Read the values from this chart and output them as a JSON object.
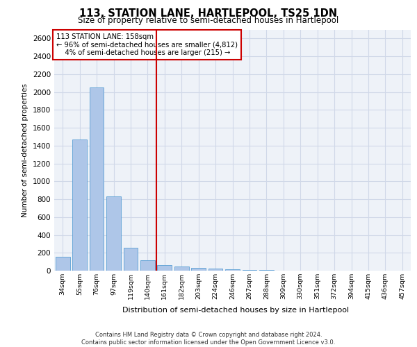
{
  "title": "113, STATION LANE, HARTLEPOOL, TS25 1DN",
  "subtitle": "Size of property relative to semi-detached houses in Hartlepool",
  "xlabel": "Distribution of semi-detached houses by size in Hartlepool",
  "ylabel": "Number of semi-detached properties",
  "property_label": "113 STATION LANE: 158sqm",
  "pct_smaller": "96% of semi-detached houses are smaller (4,812)",
  "pct_larger": "4% of semi-detached houses are larger (215)",
  "categories": [
    "34sqm",
    "55sqm",
    "76sqm",
    "97sqm",
    "119sqm",
    "140sqm",
    "161sqm",
    "182sqm",
    "203sqm",
    "224sqm",
    "246sqm",
    "267sqm",
    "288sqm",
    "309sqm",
    "330sqm",
    "351sqm",
    "372sqm",
    "394sqm",
    "415sqm",
    "436sqm",
    "457sqm"
  ],
  "values": [
    155,
    1470,
    2050,
    830,
    255,
    120,
    65,
    45,
    30,
    20,
    15,
    10,
    5,
    0,
    0,
    0,
    0,
    0,
    0,
    0,
    0
  ],
  "bar_color": "#aec6e8",
  "bar_edge_color": "#5a9fd4",
  "vline_color": "#cc0000",
  "vline_index": 6,
  "ylim": [
    0,
    2700
  ],
  "yticks": [
    0,
    200,
    400,
    600,
    800,
    1000,
    1200,
    1400,
    1600,
    1800,
    2000,
    2200,
    2400,
    2600
  ],
  "grid_color": "#d0d8e8",
  "background_color": "#eef2f8",
  "footer_line1": "Contains HM Land Registry data © Crown copyright and database right 2024.",
  "footer_line2": "Contains public sector information licensed under the Open Government Licence v3.0."
}
